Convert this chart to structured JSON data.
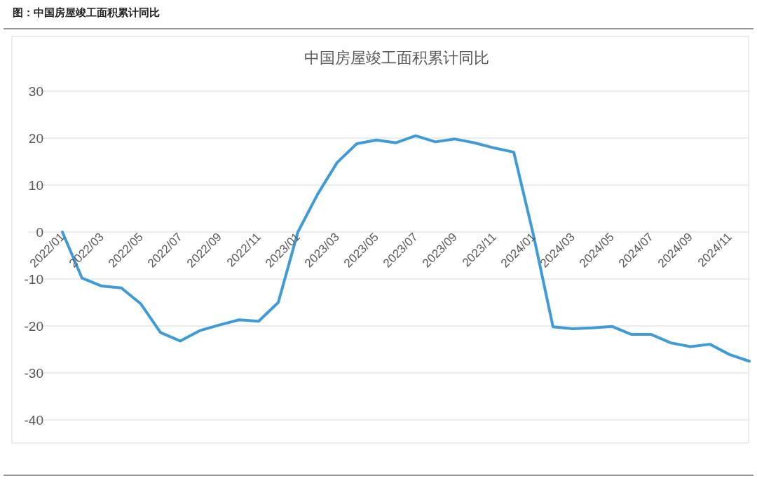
{
  "chart_data": {
    "type": "line",
    "title": "中国房屋竣工面积累计同比",
    "annotations": [
      "图：中国房屋竣工面积累计同比"
    ],
    "categories": [
      "2022/01",
      null,
      "2022/03",
      null,
      "2022/05",
      null,
      "2022/07",
      null,
      "2022/09",
      null,
      "2022/11",
      null,
      "2023/01",
      null,
      "2023/03",
      null,
      "2023/05",
      null,
      "2023/07",
      null,
      "2023/09",
      null,
      "2023/11",
      null,
      "2024/01",
      null,
      "2024/03",
      null,
      "2024/05",
      null,
      "2024/07",
      null,
      "2024/09",
      null,
      "2024/11",
      null
    ],
    "series": [
      {
        "color": "#3e9bd8",
        "values": [
          0,
          -9.8,
          -11.5,
          -11.9,
          -15.3,
          -21.4,
          -23.2,
          -21.0,
          -19.8,
          -18.7,
          -19.0,
          -15.0,
          0,
          8,
          14.8,
          18.8,
          19.6,
          19.0,
          20.5,
          19.2,
          19.8,
          19.0,
          17.9,
          17.0,
          -0.6,
          -20.2,
          -20.6,
          -20.4,
          -20.1,
          -21.8,
          -21.8,
          -23.6,
          -24.4,
          -23.9,
          -26.1,
          -27.5
        ]
      }
    ],
    "ylim": [
      -40,
      30
    ],
    "yticks": [
      -40,
      -30,
      -20,
      -10,
      0,
      10,
      20,
      30
    ],
    "grid": "y",
    "marker": "none",
    "line_style": "solid"
  }
}
